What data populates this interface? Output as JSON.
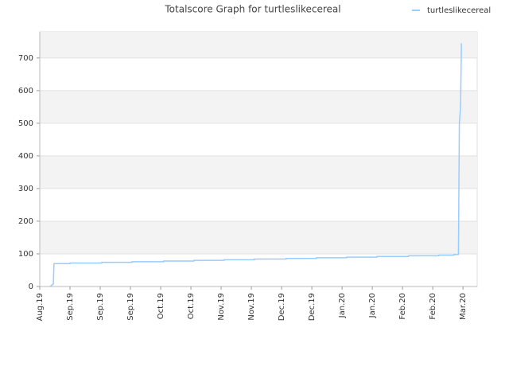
{
  "chart_data": {
    "type": "line",
    "title": "Totalscore Graph for turtleslikecereal",
    "x": [
      0.34,
      0.45,
      0.47,
      1.0,
      1.0,
      2.05,
      2.05,
      3.05,
      3.05,
      4.1,
      4.1,
      5.1,
      5.1,
      6.1,
      6.1,
      7.1,
      7.1,
      8.15,
      8.15,
      9.15,
      9.15,
      10.15,
      10.15,
      11.15,
      11.15,
      12.2,
      12.2,
      13.2,
      13.2,
      13.7,
      13.7,
      13.85,
      13.85,
      13.88,
      13.92,
      13.95
    ],
    "series": [
      {
        "name": "turtleslikecereal",
        "color": "#99ccff",
        "values": [
          0,
          8,
          70,
          70,
          72,
          72,
          74,
          74,
          76,
          76,
          78,
          78,
          80,
          80,
          82,
          82,
          84,
          84,
          86,
          86,
          88,
          88,
          90,
          90,
          92,
          92,
          94,
          94,
          96,
          96,
          98,
          98,
          100,
          500,
          550,
          745
        ]
      }
    ],
    "xlim": [
      0,
      14.47
    ],
    "xticks": [
      {
        "value": 0,
        "label": "Aug.19"
      },
      {
        "value": 1,
        "label": "Sep.19"
      },
      {
        "value": 2,
        "label": "Sep.19"
      },
      {
        "value": 3,
        "label": "Sep.19"
      },
      {
        "value": 4,
        "label": "Oct.19"
      },
      {
        "value": 5,
        "label": "Oct.19"
      },
      {
        "value": 6,
        "label": "Nov.19"
      },
      {
        "value": 7,
        "label": "Nov.19"
      },
      {
        "value": 8,
        "label": "Dec.19"
      },
      {
        "value": 9,
        "label": "Dec.19"
      },
      {
        "value": 10,
        "label": "Jan.20"
      },
      {
        "value": 11,
        "label": "Jan.20"
      },
      {
        "value": 12,
        "label": "Feb.20"
      },
      {
        "value": 13,
        "label": "Feb.20"
      },
      {
        "value": 14,
        "label": "Mar.20"
      }
    ],
    "ylim": [
      0,
      780
    ],
    "yticks": [
      0,
      100,
      200,
      300,
      400,
      500,
      600,
      700
    ],
    "grid": true,
    "legend": "top-right"
  }
}
